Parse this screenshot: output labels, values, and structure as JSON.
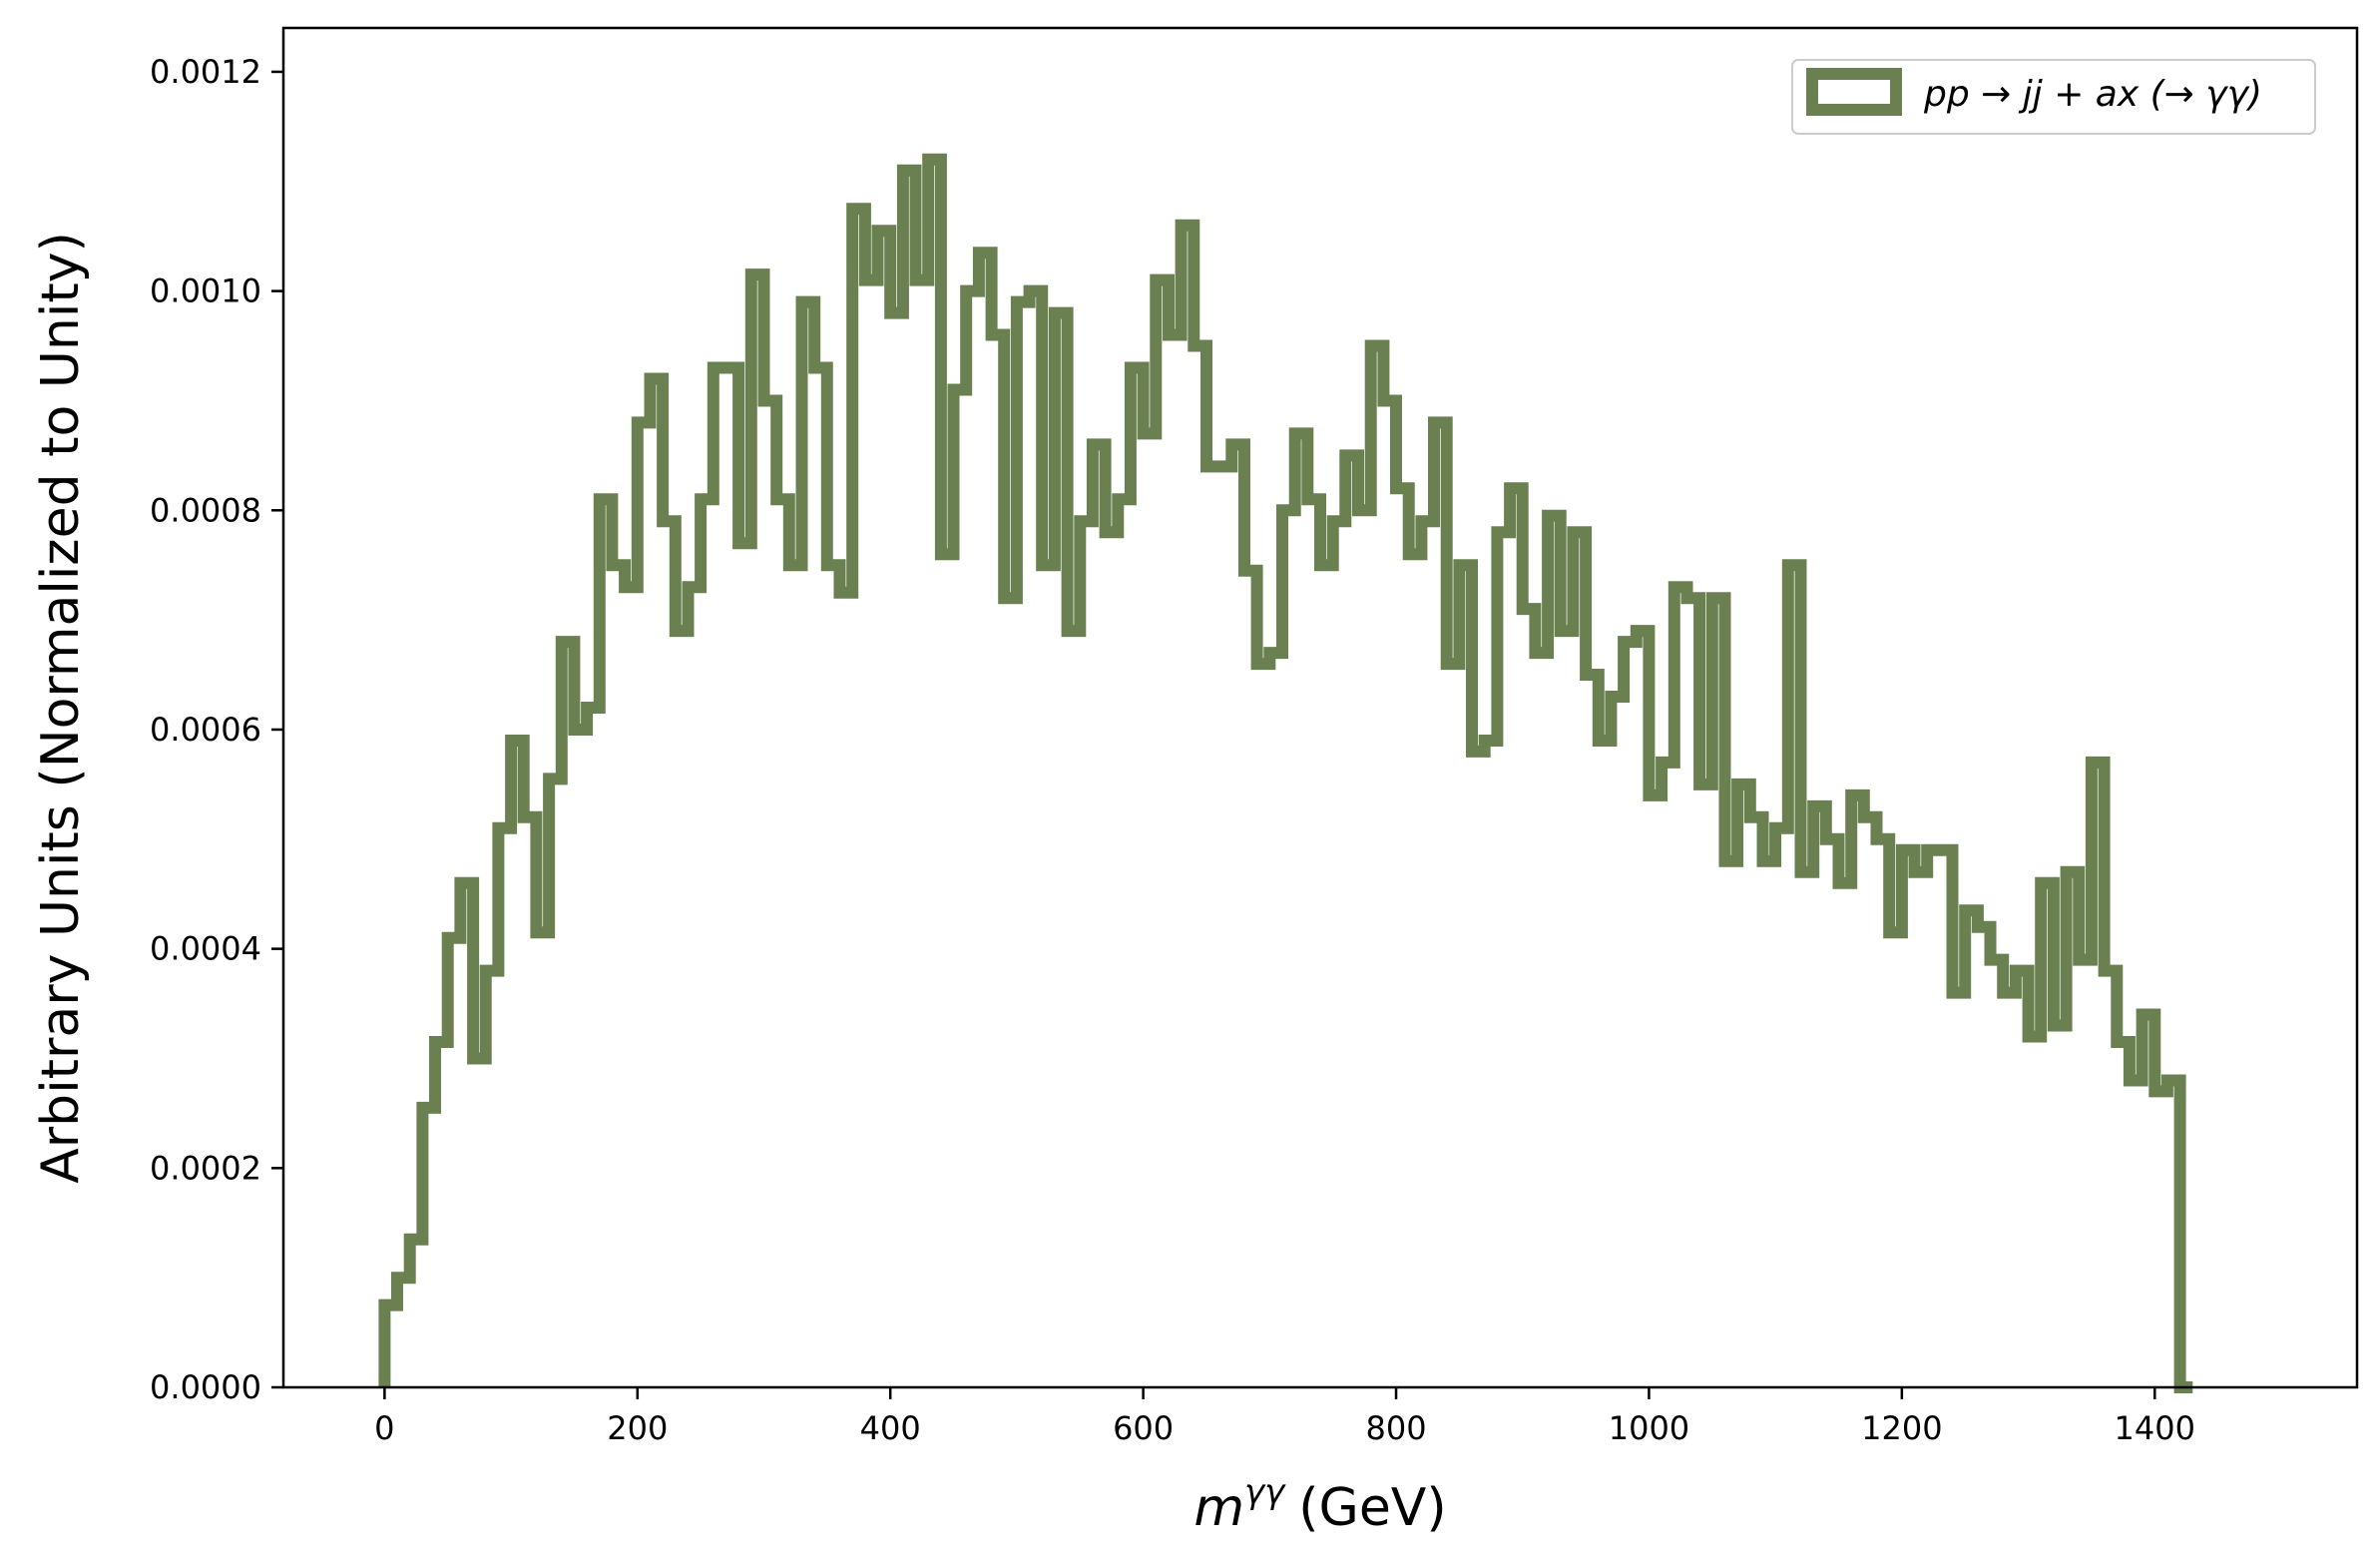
{
  "chart_data": {
    "type": "histogram-step",
    "xlabel": "m^{γγ} (GeV)",
    "xlabel_main": "m",
    "xlabel_sup": "γγ",
    "xlabel_unit": "(GeV)",
    "ylabel": "Arbitrary Units (Normalized to Unity)",
    "xlim": [
      -80,
      1560
    ],
    "ylim": [
      0,
      0.00124
    ],
    "xticks": [
      0,
      200,
      400,
      600,
      800,
      1000,
      1200,
      1400
    ],
    "xtick_labels": [
      "0",
      "200",
      "400",
      "600",
      "800",
      "1000",
      "1200",
      "1400"
    ],
    "yticks": [
      0,
      0.0002,
      0.0004,
      0.0006,
      0.0008,
      0.001,
      0.0012
    ],
    "ytick_labels": [
      "0.0000",
      "0.0002",
      "0.0004",
      "0.0006",
      "0.0008",
      "0.0010",
      "0.0012"
    ],
    "grid": false,
    "legend_position": "top-right",
    "series": [
      {
        "name": "pp → jj + ax (→ γγ)",
        "color": "#6a8050",
        "bin_width": 10,
        "x_start": 0,
        "values": [
          7.5e-05,
          0.0001,
          0.000135,
          0.000255,
          0.000315,
          0.00041,
          0.00046,
          0.0003,
          0.00038,
          0.00051,
          0.00059,
          0.00052,
          0.000415,
          0.000555,
          0.00068,
          0.0006,
          0.00062,
          0.00081,
          0.00075,
          0.00073,
          0.00088,
          0.00092,
          0.00079,
          0.00069,
          0.00073,
          0.00081,
          0.00093,
          0.00093,
          0.00077,
          0.001015,
          0.0009,
          0.00081,
          0.00075,
          0.00099,
          0.00093,
          0.00075,
          0.000725,
          0.001075,
          0.00101,
          0.001055,
          0.00098,
          0.00111,
          0.00101,
          0.00112,
          0.00076,
          0.00091,
          0.001,
          0.001035,
          0.00096,
          0.00072,
          0.00099,
          0.001,
          0.00075,
          0.00098,
          0.00069,
          0.00079,
          0.00086,
          0.00078,
          0.00081,
          0.00093,
          0.00087,
          0.00101,
          0.00096,
          0.00106,
          0.00095,
          0.00084,
          0.00084,
          0.00086,
          0.000745,
          0.00066,
          0.00067,
          0.0008,
          0.00087,
          0.00081,
          0.00075,
          0.00079,
          0.00085,
          0.0008,
          0.00095,
          0.0009,
          0.00082,
          0.00076,
          0.00079,
          0.00088,
          0.00066,
          0.00075,
          0.00058,
          0.00059,
          0.00078,
          0.00082,
          0.00071,
          0.00067,
          0.000795,
          0.00069,
          0.00078,
          0.00065,
          0.00059,
          0.00063,
          0.00068,
          0.00069,
          0.00054,
          0.00057,
          0.00073,
          0.00072,
          0.00055,
          0.00072,
          0.00048,
          0.00055,
          0.00052,
          0.00048,
          0.00051,
          0.00075,
          0.00047,
          0.00053,
          0.0005,
          0.00046,
          0.00054,
          0.00052,
          0.0005,
          0.000415,
          0.00049,
          0.00047,
          0.00049,
          0.00049,
          0.00036,
          0.000435,
          0.00042,
          0.00039,
          0.00036,
          0.00038,
          0.00032,
          0.00046,
          0.00033,
          0.00047,
          0.00039,
          0.00057,
          0.00038,
          0.000315,
          0.00028,
          0.00034,
          0.00027,
          0.00028,
          0.0
        ]
      }
    ]
  }
}
